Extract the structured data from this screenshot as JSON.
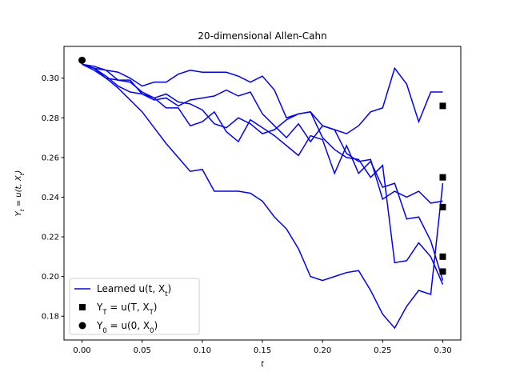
{
  "chart_data": {
    "type": "line",
    "title": "20-dimensional Allen-Cahn",
    "x_label": "t",
    "y_label": "Y_t = u(t, X_t)",
    "x": [
      0,
      0.01,
      0.02,
      0.03,
      0.04,
      0.05,
      0.06,
      0.07,
      0.08,
      0.09,
      0.1,
      0.11,
      0.12,
      0.13,
      0.14,
      0.15,
      0.16,
      0.17,
      0.18,
      0.19,
      0.2,
      0.21,
      0.22,
      0.23,
      0.24,
      0.25,
      0.26,
      0.27,
      0.28,
      0.29,
      0.3
    ],
    "series": [
      {
        "color": "#0000ff",
        "values": [
          0.307,
          0.305,
          0.304,
          0.303,
          0.3,
          0.296,
          0.298,
          0.298,
          0.302,
          0.304,
          0.303,
          0.303,
          0.303,
          0.301,
          0.298,
          0.301,
          0.294,
          0.28,
          0.282,
          0.283,
          0.276,
          0.274,
          0.272,
          0.276,
          0.283,
          0.285,
          0.305,
          0.297,
          0.278,
          0.293,
          0.293
        ]
      },
      {
        "color": "#0000ff",
        "values": [
          0.307,
          0.305,
          0.3,
          0.299,
          0.299,
          0.292,
          0.289,
          0.29,
          0.286,
          0.289,
          0.29,
          0.291,
          0.294,
          0.291,
          0.293,
          0.282,
          0.276,
          0.27,
          0.277,
          0.268,
          0.276,
          0.274,
          0.262,
          0.258,
          0.259,
          0.239,
          0.243,
          0.24,
          0.243,
          0.237,
          0.238
        ]
      },
      {
        "color": "#0000ff",
        "values": [
          0.307,
          0.305,
          0.301,
          0.296,
          0.293,
          0.292,
          0.29,
          0.285,
          0.285,
          0.276,
          0.278,
          0.283,
          0.273,
          0.268,
          0.279,
          0.275,
          0.271,
          0.266,
          0.261,
          0.271,
          0.269,
          0.252,
          0.266,
          0.252,
          0.258,
          0.245,
          0.247,
          0.229,
          0.23,
          0.218,
          0.198
        ]
      },
      {
        "color": "#0000ff",
        "values": [
          0.307,
          0.304,
          0.3,
          0.295,
          0.289,
          0.283,
          0.275,
          0.267,
          0.26,
          0.253,
          0.254,
          0.243,
          0.243,
          0.243,
          0.242,
          0.238,
          0.23,
          0.224,
          0.214,
          0.2,
          0.198,
          0.2,
          0.202,
          0.203,
          0.193,
          0.181,
          0.174,
          0.185,
          0.193,
          0.191,
          0.247
        ]
      },
      {
        "color": "#0000ff",
        "values": [
          0.307,
          0.306,
          0.304,
          0.299,
          0.298,
          0.293,
          0.29,
          0.292,
          0.288,
          0.287,
          0.284,
          0.277,
          0.275,
          0.28,
          0.277,
          0.272,
          0.274,
          0.279,
          0.282,
          0.283,
          0.27,
          0.264,
          0.26,
          0.259,
          0.25,
          0.256,
          0.207,
          0.208,
          0.217,
          0.21,
          0.196
        ]
      }
    ],
    "terminal": {
      "x": 0.3,
      "values": [
        0.286,
        0.25,
        0.235,
        0.21,
        0.2025
      ],
      "color": "#000000"
    },
    "initial": {
      "x": 0,
      "value": 0.309,
      "color": "#000000"
    },
    "legend": {
      "loc": "lower left",
      "entries": [
        "Learned u(t, X_t)",
        "Y_T = u(T, X_T)",
        "Y_0 = u(0, X_0)"
      ]
    },
    "xlim": [
      -0.015,
      0.315
    ],
    "ylim": [
      0.168,
      0.316
    ],
    "xticks": [
      {
        "value": 0,
        "label": "0.00"
      },
      {
        "value": 0.05,
        "label": "0.05"
      },
      {
        "value": 0.1,
        "label": "0.10"
      },
      {
        "value": 0.15,
        "label": "0.15"
      },
      {
        "value": 0.2,
        "label": "0.20"
      },
      {
        "value": 0.25,
        "label": "0.25"
      },
      {
        "value": 0.3,
        "label": "0.30"
      }
    ],
    "yticks": [
      {
        "value": 0.18,
        "label": "0.18"
      },
      {
        "value": 0.2,
        "label": "0.20"
      },
      {
        "value": 0.22,
        "label": "0.22"
      },
      {
        "value": 0.24,
        "label": "0.24"
      },
      {
        "value": 0.26,
        "label": "0.26"
      },
      {
        "value": 0.28,
        "label": "0.28"
      },
      {
        "value": 0.3,
        "label": "0.30"
      }
    ]
  }
}
